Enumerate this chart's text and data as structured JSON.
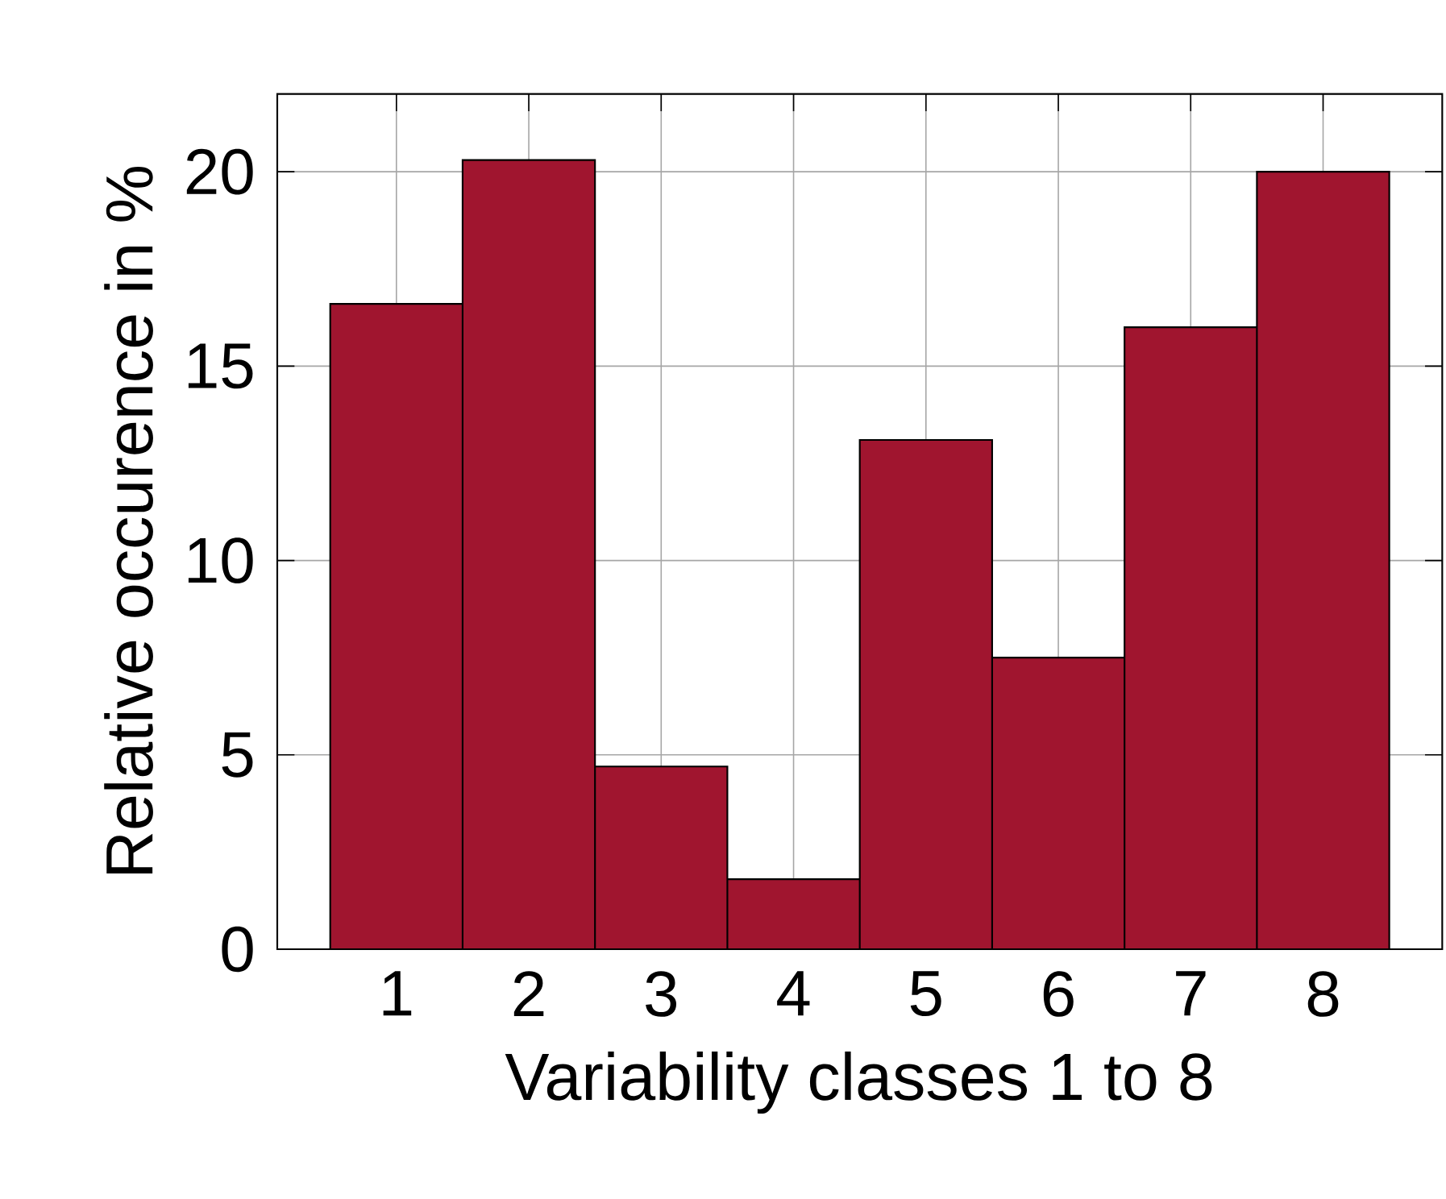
{
  "chart_data": {
    "type": "bar",
    "xlabel": "Variability classes 1 to 8",
    "ylabel": "Relative occurence in %",
    "categories": [
      "1",
      "2",
      "3",
      "4",
      "5",
      "6",
      "7",
      "8"
    ],
    "values": [
      16.6,
      20.3,
      4.7,
      1.8,
      13.1,
      7.5,
      16.0,
      20.0
    ],
    "color": "#a0152f",
    "ylim": [
      0,
      22
    ],
    "yticks": [
      0,
      5,
      10,
      15,
      20
    ],
    "grid": true
  }
}
